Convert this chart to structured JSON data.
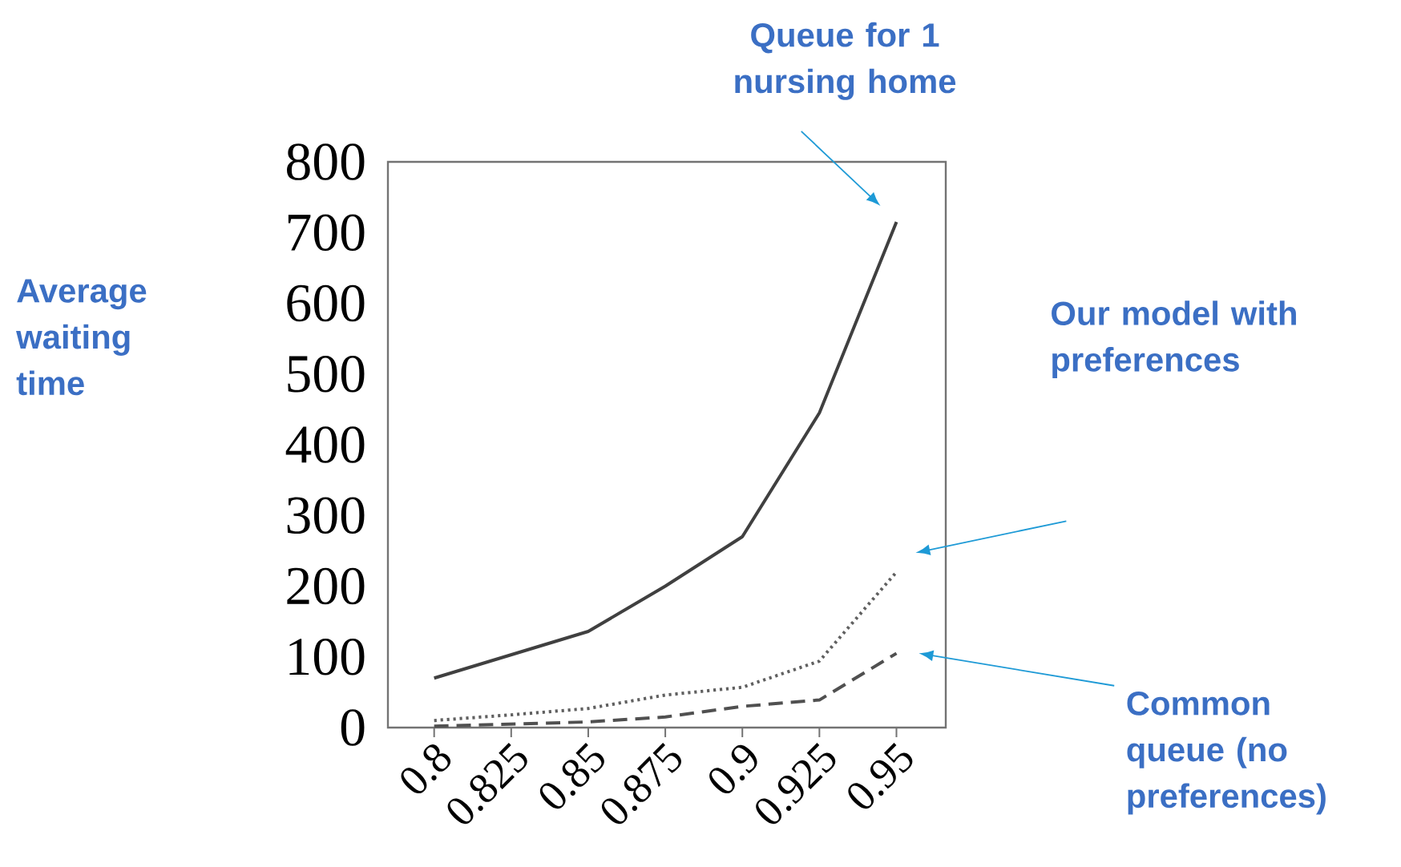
{
  "chart_data": {
    "type": "line",
    "ylabel": "Average waiting time",
    "x": [
      0.8,
      0.825,
      0.85,
      0.875,
      0.9,
      0.925,
      0.95
    ],
    "xlim": [
      0.785,
      0.966
    ],
    "xticks": [
      0.8,
      0.825,
      0.85,
      0.875,
      0.9,
      0.925,
      0.95
    ],
    "ylim": [
      0,
      800
    ],
    "yticks": [
      0,
      100,
      200,
      300,
      400,
      500,
      600,
      700,
      800
    ],
    "marker": "none",
    "grid": false,
    "series": [
      {
        "color": "#404040",
        "line_style": "solid",
        "values": [
          70,
          103,
          136,
          200,
          270,
          445,
          715
        ]
      },
      {
        "color": "#606060",
        "line_style": "dotted",
        "values": [
          10,
          18,
          27,
          46,
          57,
          94,
          220
        ]
      },
      {
        "color": "#505050",
        "line_style": "dashed",
        "values": [
          2,
          5,
          8,
          15,
          30,
          39,
          105
        ]
      }
    ],
    "annotations": [
      "Queue for 1 nursing home",
      "Our model with preferences",
      "Common queue (no preferences)"
    ]
  }
}
